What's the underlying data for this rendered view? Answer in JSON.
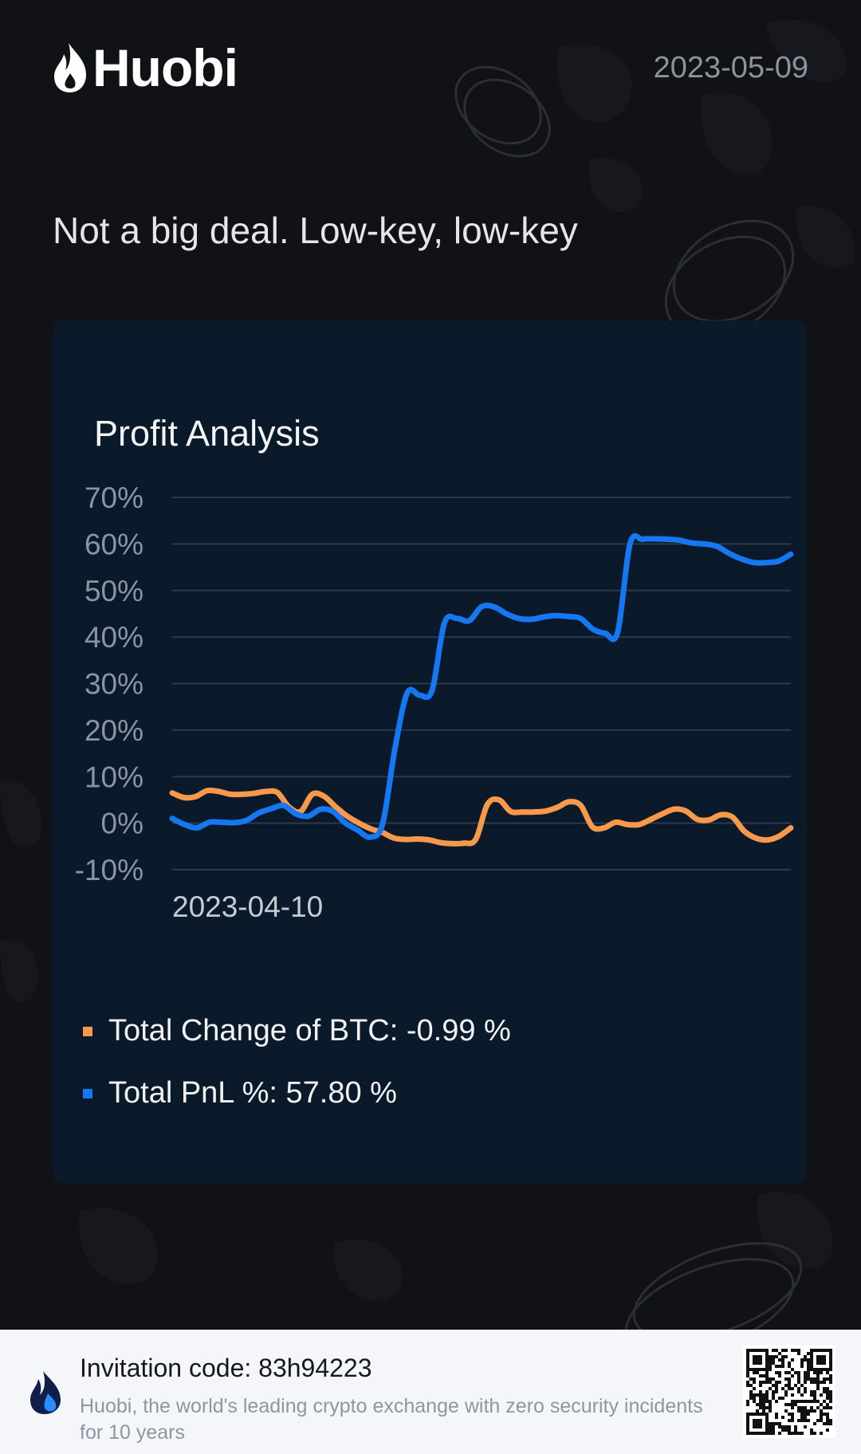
{
  "header": {
    "brand_name": "Huobi",
    "date": "2023-05-09"
  },
  "slogan": "Not a big deal. Low-key, low-key",
  "card": {
    "title": "Profit Analysis"
  },
  "chart_data": {
    "type": "line",
    "title": "Profit Analysis",
    "xlabel": "",
    "ylabel": "",
    "x_tick_labels": [
      "2023-04-10"
    ],
    "y_ticks": [
      70,
      60,
      50,
      40,
      30,
      20,
      10,
      0,
      -10
    ],
    "y_tick_labels": [
      "70%",
      "60%",
      "50%",
      "40%",
      "30%",
      "20%",
      "10%",
      "0%",
      "-10%"
    ],
    "ylim": [
      -10,
      70
    ],
    "grid": true,
    "series": [
      {
        "name": "Total Change of BTC",
        "color": "#f7984a",
        "values": [
          6.5,
          5.5,
          5.7,
          7,
          6.8,
          6.2,
          6.2,
          6.4,
          6.8,
          6.6,
          3.5,
          2.5,
          6.2,
          5.8,
          3.5,
          1.5,
          0,
          -1.2,
          -2,
          -3.2,
          -3.5,
          -3.4,
          -3.6,
          -4.2,
          -4.4,
          -4.3,
          -3.5,
          4,
          5,
          2.5,
          2.4,
          2.4,
          2.6,
          3.4,
          4.6,
          3.8,
          -0.8,
          -1,
          0.2,
          -0.3,
          -0.3,
          0.8,
          2,
          3,
          2.6,
          0.8,
          0.7,
          1.8,
          1.3,
          -1.7,
          -3.2,
          -3.6,
          -2.8,
          -1
        ]
      },
      {
        "name": "Total PnL %",
        "color": "#1677f2",
        "values": [
          1,
          -0.3,
          -1,
          0.2,
          0.2,
          0.1,
          0.6,
          2.2,
          3.1,
          3.8,
          2,
          1.5,
          3,
          2.5,
          0,
          -1.5,
          -3,
          -0.2,
          16,
          28,
          27.5,
          28.5,
          43,
          44,
          43.5,
          46.5,
          46.5,
          45,
          44,
          43.8,
          44.3,
          44.6,
          44.4,
          44,
          41.7,
          40.8,
          41,
          60,
          61,
          61.1,
          61,
          60.8,
          60.2,
          60,
          59.5,
          58,
          56.8,
          56,
          56,
          56.3,
          57.8
        ]
      }
    ]
  },
  "legend": {
    "btc_label": "Total Change of BTC: -0.99 %",
    "btc_color": "#f7984a",
    "pnl_label": "Total PnL %: 57.80 %",
    "pnl_color": "#1677f2"
  },
  "footer": {
    "invitation": "Invitation code: 83h94223",
    "tagline": "Huobi, the world's leading crypto exchange with zero security incidents for 10 years"
  }
}
